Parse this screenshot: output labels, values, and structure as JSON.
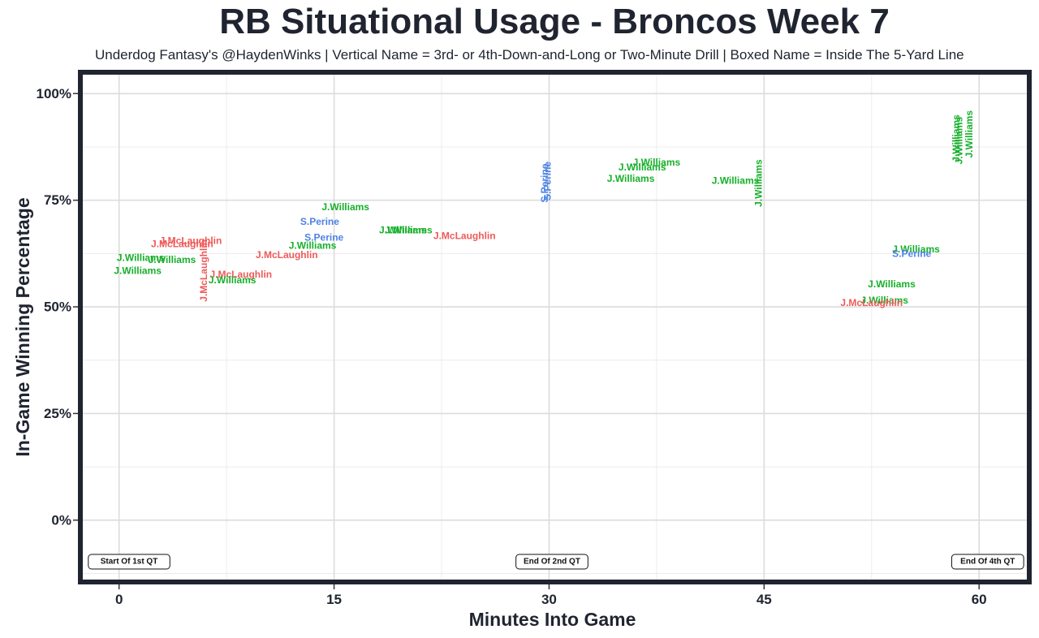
{
  "chart_data": {
    "type": "scatter",
    "title": "RB Situational Usage - Broncos Week 7",
    "subtitle": "Underdog Fantasy's @HaydenWinks | Vertical Name = 3rd- or 4th-Down-and-Long or Two-Minute Drill | Boxed Name = Inside The 5-Yard Line",
    "xlabel": "Minutes Into Game",
    "ylabel": "In-Game Winning Percentage",
    "xlim": [
      -2.7,
      63.5
    ],
    "ylim": [
      -14.5,
      105
    ],
    "x_ticks": [
      0,
      15,
      30,
      45,
      60
    ],
    "x_tick_labels": [
      "0",
      "15",
      "30",
      "45",
      "60"
    ],
    "y_ticks": [
      0,
      25,
      50,
      75,
      100
    ],
    "y_tick_labels": [
      "0%",
      "25%",
      "50%",
      "75%",
      "100%"
    ],
    "grid": true,
    "colors": {
      "J.Williams": "#16b02a",
      "J.McLaughlin": "#ef5a5a",
      "S.Perine": "#4b82e6",
      "frame": "#1f2430"
    },
    "quarter_markers": [
      {
        "x": 0.7,
        "label": "Start Of 1st QT"
      },
      {
        "x": 30.2,
        "label": "End Of 2nd QT"
      },
      {
        "x": 60.6,
        "label": "End Of 4th QT"
      }
    ],
    "points": [
      {
        "player": "J.Williams",
        "x": 1.5,
        "y": 61.5,
        "vertical": false
      },
      {
        "player": "J.Williams",
        "x": 3.7,
        "y": 61.0,
        "vertical": false
      },
      {
        "player": "J.Williams",
        "x": 1.3,
        "y": 58.5,
        "vertical": false
      },
      {
        "player": "J.McLaughlin",
        "x": 5.0,
        "y": 65.5,
        "vertical": false
      },
      {
        "player": "J.McLaughlin",
        "x": 4.4,
        "y": 64.8,
        "vertical": false
      },
      {
        "player": "J.McLaughlin",
        "x": 5.9,
        "y": 58.5,
        "vertical": true
      },
      {
        "player": "J.McLaughlin",
        "x": 8.5,
        "y": 57.6,
        "vertical": false
      },
      {
        "player": "J.Williams",
        "x": 7.9,
        "y": 56.3,
        "vertical": false
      },
      {
        "player": "J.McLaughlin",
        "x": 11.7,
        "y": 62.2,
        "vertical": false
      },
      {
        "player": "J.Williams",
        "x": 13.5,
        "y": 64.4,
        "vertical": false
      },
      {
        "player": "S.Perine",
        "x": 14.3,
        "y": 66.3,
        "vertical": false
      },
      {
        "player": "S.Perine",
        "x": 14.0,
        "y": 70.0,
        "vertical": false
      },
      {
        "player": "J.Williams",
        "x": 15.8,
        "y": 73.4,
        "vertical": false
      },
      {
        "player": "J.Williams",
        "x": 19.8,
        "y": 68.0,
        "vertical": false
      },
      {
        "player": "J.Williams",
        "x": 20.2,
        "y": 68.0,
        "vertical": false
      },
      {
        "player": "J.McLaughlin",
        "x": 24.1,
        "y": 66.7,
        "vertical": false
      },
      {
        "player": "S.Perine",
        "x": 29.7,
        "y": 79.0,
        "vertical": true
      },
      {
        "player": "S.Perine",
        "x": 29.9,
        "y": 79.5,
        "vertical": true
      },
      {
        "player": "J.Williams",
        "x": 37.5,
        "y": 83.9,
        "vertical": false
      },
      {
        "player": "J.Williams",
        "x": 36.5,
        "y": 82.7,
        "vertical": false
      },
      {
        "player": "J.Williams",
        "x": 35.7,
        "y": 80.1,
        "vertical": false
      },
      {
        "player": "J.Williams",
        "x": 43.0,
        "y": 79.6,
        "vertical": false
      },
      {
        "player": "J.Williams",
        "x": 44.6,
        "y": 79.0,
        "vertical": true
      },
      {
        "player": "J.Williams",
        "x": 58.4,
        "y": 89.5,
        "vertical": true
      },
      {
        "player": "J.Williams",
        "x": 58.6,
        "y": 89.0,
        "vertical": true
      },
      {
        "player": "J.Williams",
        "x": 59.3,
        "y": 90.5,
        "vertical": true
      },
      {
        "player": "J.Williams",
        "x": 55.6,
        "y": 63.5,
        "vertical": false
      },
      {
        "player": "S.Perine",
        "x": 55.3,
        "y": 62.5,
        "vertical": false
      },
      {
        "player": "J.Williams",
        "x": 53.9,
        "y": 55.3,
        "vertical": false
      },
      {
        "player": "J.Williams",
        "x": 53.4,
        "y": 51.5,
        "vertical": false
      },
      {
        "player": "J.McLaughlin",
        "x": 52.5,
        "y": 51.0,
        "vertical": false
      }
    ]
  }
}
